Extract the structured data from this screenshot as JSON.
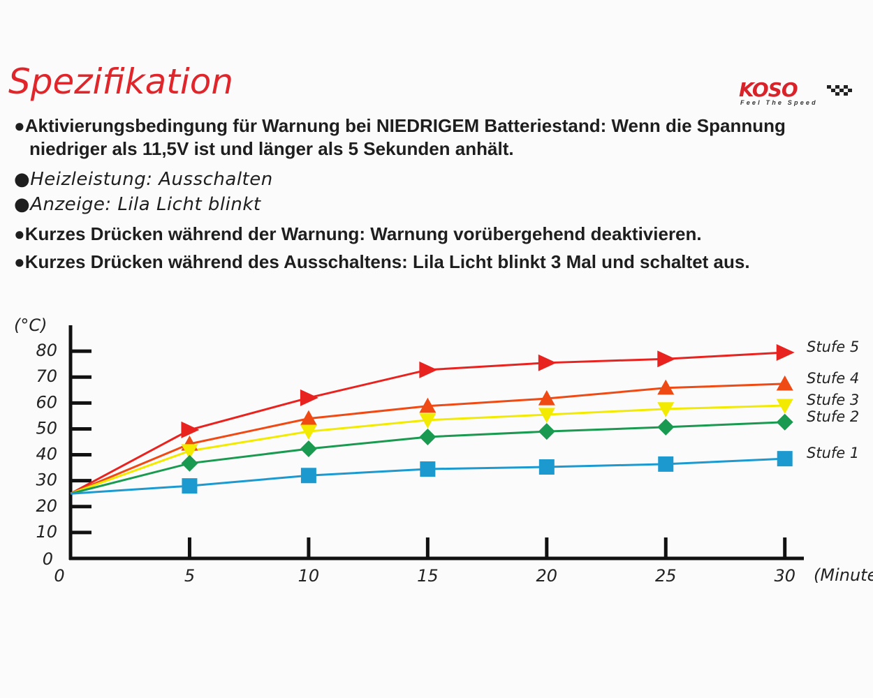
{
  "header": {
    "title": "Spezifikation",
    "logo": "KOSO",
    "tagline": "Feel The Speed"
  },
  "bullets": [
    "Aktivierungsbedingung für Warnung bei NIEDRIGEM Batteriestand: Wenn die Spannung niedriger als 11,5V ist und länger als 5 Sekunden anhält.",
    "Heizleistung: Ausschalten",
    "Anzeige: Lila Licht blinkt",
    "Kurzes Drücken während der Warnung: Warnung vorübergehend deaktivieren.",
    "Kurzes Drücken während des Ausschaltens: Lila Licht blinkt 3 Mal und schaltet aus."
  ],
  "chart_data": {
    "type": "line",
    "y_label": "(°C)",
    "x_label": "(Minuten)",
    "x": [
      0,
      5,
      10,
      15,
      20,
      25,
      30
    ],
    "series": [
      {
        "name": "Stufe 5",
        "color": "#e8231f",
        "marker": "triangle-right",
        "values": [
          25,
          49.6,
          62,
          72.8,
          75.5,
          77,
          79.5
        ]
      },
      {
        "name": "Stufe 4",
        "color": "#f04a14",
        "marker": "triangle-up",
        "values": [
          25,
          44.2,
          54,
          58.8,
          61.7,
          65.8,
          67.4
        ]
      },
      {
        "name": "Stufe 3",
        "color": "#f2ea00",
        "marker": "triangle-down",
        "values": [
          25,
          41.5,
          49,
          53.4,
          55.5,
          57.7,
          59
        ]
      },
      {
        "name": "Stufe 2",
        "color": "#1a9a50",
        "marker": "diamond",
        "values": [
          25,
          36.7,
          42.3,
          46.9,
          49,
          50.7,
          52.6
        ]
      },
      {
        "name": "Stufe 1",
        "color": "#1c9ad0",
        "marker": "square",
        "values": [
          25,
          28,
          32,
          34.5,
          35.3,
          36.4,
          38.5
        ]
      }
    ],
    "xlim": [
      0,
      30.8
    ],
    "ylim": [
      0,
      90
    ],
    "xticks": [
      0,
      5,
      10,
      15,
      20,
      25,
      30
    ],
    "yticks": [
      0,
      10,
      20,
      30,
      40,
      50,
      60,
      70,
      80
    ]
  }
}
